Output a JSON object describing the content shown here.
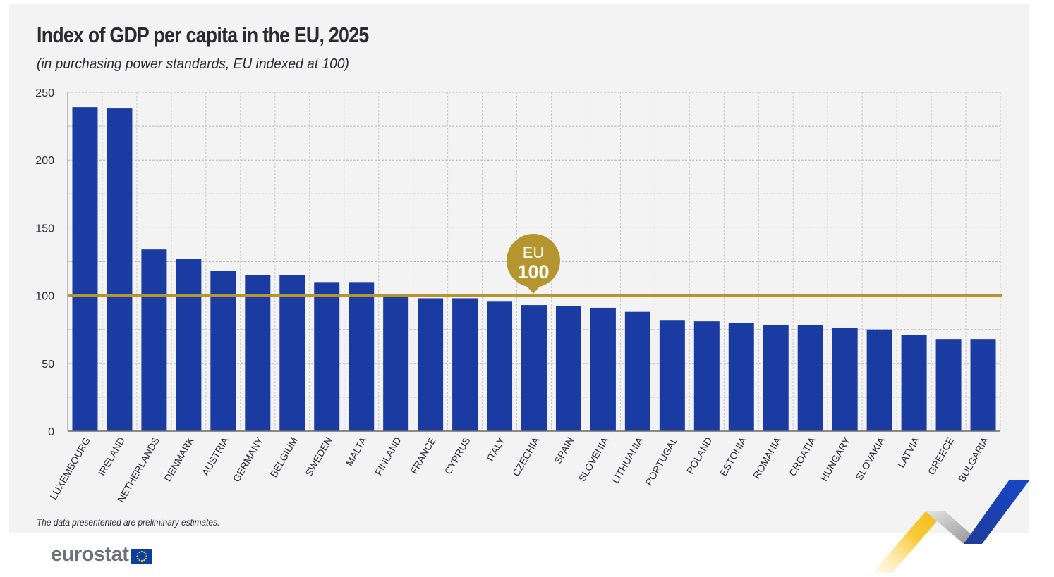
{
  "title": "Index of GDP per capita in the EU, 2025",
  "subtitle": "(in purchasing power standards, EU indexed at 100)",
  "footnote": "The data presentented are preliminary estimates.",
  "brand": {
    "name": "eurostat"
  },
  "reference": {
    "label_top": "EU",
    "label_value": "100",
    "value": 100
  },
  "colors": {
    "bar": "#1a3ba2",
    "reference": "#b5952e",
    "background": "#f3f3f3",
    "grid": "#b8b8b8"
  },
  "chart_data": {
    "type": "bar",
    "title": "Index of GDP per capita in the EU, 2025",
    "subtitle": "(in purchasing power standards, EU indexed at 100)",
    "categories": [
      "LUXEMBOURG",
      "IRELAND",
      "NETHERLANDS",
      "DENMARK",
      "AUSTRIA",
      "GERMANY",
      "BELGIUM",
      "SWEDEN",
      "MALTA",
      "FINLAND",
      "FRANCE",
      "CYPRUS",
      "ITALY",
      "CZECHIA",
      "SPAIN",
      "SLOVENIA",
      "LITHUANIA",
      "PORTUGAL",
      "POLAND",
      "ESTONIA",
      "ROMANIA",
      "CROATIA",
      "HUNGARY",
      "SLOVAKIA",
      "LATVIA",
      "GREECE",
      "BULGARIA"
    ],
    "values": [
      239,
      238,
      134,
      127,
      118,
      115,
      115,
      110,
      110,
      101,
      98,
      98,
      96,
      93,
      92,
      91,
      88,
      82,
      81,
      80,
      78,
      78,
      76,
      75,
      71,
      68,
      68
    ],
    "ylim": [
      0,
      250
    ],
    "yticks": [
      0,
      50,
      100,
      150,
      200,
      250
    ],
    "grid": true,
    "reference_line": 100
  }
}
